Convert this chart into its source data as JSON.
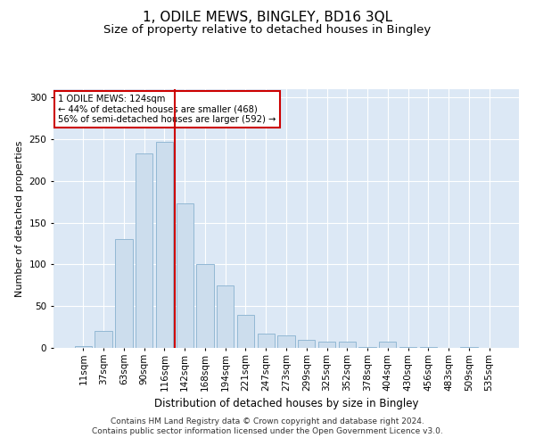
{
  "title": "1, ODILE MEWS, BINGLEY, BD16 3QL",
  "subtitle": "Size of property relative to detached houses in Bingley",
  "xlabel": "Distribution of detached houses by size in Bingley",
  "ylabel": "Number of detached properties",
  "categories": [
    "11sqm",
    "37sqm",
    "63sqm",
    "90sqm",
    "116sqm",
    "142sqm",
    "168sqm",
    "194sqm",
    "221sqm",
    "247sqm",
    "273sqm",
    "299sqm",
    "325sqm",
    "352sqm",
    "378sqm",
    "404sqm",
    "430sqm",
    "456sqm",
    "483sqm",
    "509sqm",
    "535sqm"
  ],
  "values": [
    2,
    20,
    130,
    233,
    247,
    173,
    100,
    75,
    40,
    17,
    15,
    10,
    7,
    7,
    1,
    7,
    1,
    1,
    0,
    1,
    0
  ],
  "bar_color": "#ccdded",
  "bar_edge_color": "#92b8d4",
  "vline_x_idx": 4.5,
  "vline_color": "#cc0000",
  "annotation_text": "1 ODILE MEWS: 124sqm\n← 44% of detached houses are smaller (468)\n56% of semi-detached houses are larger (592) →",
  "annotation_box_color": "#ffffff",
  "annotation_box_edge": "#cc0000",
  "ylim": [
    0,
    310
  ],
  "yticks": [
    0,
    50,
    100,
    150,
    200,
    250,
    300
  ],
  "plot_bg_color": "#dce8f5",
  "title_fontsize": 11,
  "subtitle_fontsize": 9.5,
  "xlabel_fontsize": 8.5,
  "ylabel_fontsize": 8,
  "tick_fontsize": 7.5,
  "footer_text": "Contains HM Land Registry data © Crown copyright and database right 2024.\nContains public sector information licensed under the Open Government Licence v3.0.",
  "footer_fontsize": 6.5
}
